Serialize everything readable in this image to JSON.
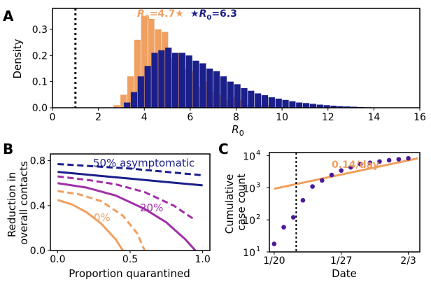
{
  "panels": {
    "A": {
      "letter": "A"
    },
    "B": {
      "letter": "B"
    },
    "C": {
      "letter": "C"
    }
  },
  "colors": {
    "orange": "#f0a060",
    "navy": "#1b1f8a",
    "purple": "#a030a8",
    "purple_dot": "#4a1a9a"
  },
  "chart_data": [
    {
      "panel": "A",
      "type": "bar",
      "xlabel_main": "R",
      "xlabel_sub": "0",
      "ylabel": "Density",
      "xlim": [
        0,
        16
      ],
      "ylim": [
        0,
        0.38
      ],
      "x_ticks": [
        "0",
        "2",
        "4",
        "6",
        "8",
        "10",
        "12",
        "14",
        "16"
      ],
      "y_ticks": [
        "0.0",
        "0.1",
        "0.2",
        "0.3"
      ],
      "bin_width": 0.28,
      "reference_line_x": 1,
      "annotations": [
        {
          "main": "R",
          "sub": "0",
          "text": "=4.7",
          "marker": "★",
          "color": "orange"
        },
        {
          "main": "R",
          "sub": "0",
          "text": "=6.3",
          "marker": "★",
          "color": "navy"
        }
      ],
      "series": [
        {
          "color": "orange",
          "x": [
            2.8,
            3.1,
            3.4,
            3.7,
            4.0,
            4.3,
            4.6,
            4.9,
            5.2,
            5.5,
            5.8,
            6.1,
            6.4,
            6.7,
            7.0,
            7.3,
            7.6,
            7.9,
            8.2,
            8.5,
            9.0,
            9.3
          ],
          "values": [
            0.01,
            0.05,
            0.12,
            0.26,
            0.35,
            0.34,
            0.3,
            0.29,
            0.19,
            0.21,
            0.15,
            0.14,
            0.08,
            0.1,
            0.06,
            0.05,
            0.03,
            0.04,
            0.03,
            0.01,
            0.01,
            0.01
          ]
        },
        {
          "color": "navy",
          "x": [
            2.95,
            3.25,
            3.55,
            3.85,
            4.15,
            4.45,
            4.75,
            5.05,
            5.35,
            5.65,
            5.95,
            6.25,
            6.55,
            6.85,
            7.15,
            7.45,
            7.75,
            8.05,
            8.35,
            8.65,
            8.95,
            9.25,
            9.55,
            9.85,
            10.15,
            10.45,
            10.75,
            11.05,
            11.35,
            11.65,
            11.95,
            12.25,
            12.55,
            12.85,
            13.15,
            13.45,
            13.75
          ],
          "values": [
            0.0,
            0.02,
            0.06,
            0.12,
            0.16,
            0.21,
            0.22,
            0.23,
            0.21,
            0.21,
            0.2,
            0.18,
            0.17,
            0.15,
            0.14,
            0.12,
            0.1,
            0.09,
            0.075,
            0.065,
            0.055,
            0.048,
            0.04,
            0.035,
            0.03,
            0.025,
            0.02,
            0.018,
            0.015,
            0.012,
            0.01,
            0.008,
            0.006,
            0.005,
            0.004,
            0.003,
            0.002
          ]
        }
      ]
    },
    {
      "panel": "B",
      "type": "line",
      "xlabel": "Proportion quarantined",
      "ylabel_lines": [
        "Reduction in",
        "overall contacts"
      ],
      "xlim": [
        -0.05,
        1.05
      ],
      "ylim": [
        0,
        0.86
      ],
      "x_ticks": [
        "0.0",
        "0.5",
        "1.0"
      ],
      "y_ticks": [
        "0.0",
        "0.4",
        "0.8"
      ],
      "labels": {
        "navy": "50% asymptomatic",
        "purple": "20%",
        "orange": "0%"
      },
      "series": [
        {
          "color": "navy",
          "dash": true,
          "x": [
            0,
            0.25,
            0.5,
            0.75,
            1.0
          ],
          "values": [
            0.77,
            0.75,
            0.73,
            0.7,
            0.67
          ]
        },
        {
          "color": "navy",
          "dash": false,
          "x": [
            0,
            0.25,
            0.5,
            0.75,
            1.0
          ],
          "values": [
            0.7,
            0.67,
            0.64,
            0.61,
            0.58
          ]
        },
        {
          "color": "purple",
          "dash": true,
          "x": [
            0,
            0.2,
            0.4,
            0.6,
            0.8,
            0.95
          ],
          "values": [
            0.66,
            0.63,
            0.59,
            0.52,
            0.4,
            0.27
          ]
        },
        {
          "color": "purple",
          "dash": false,
          "x": [
            0,
            0.2,
            0.4,
            0.6,
            0.75,
            0.88,
            0.95
          ],
          "values": [
            0.6,
            0.56,
            0.49,
            0.37,
            0.25,
            0.1,
            0.0
          ]
        },
        {
          "color": "orange",
          "dash": true,
          "x": [
            0,
            0.15,
            0.3,
            0.45,
            0.55,
            0.6
          ],
          "values": [
            0.53,
            0.5,
            0.44,
            0.31,
            0.15,
            0.0
          ]
        },
        {
          "color": "orange",
          "dash": false,
          "x": [
            0,
            0.1,
            0.2,
            0.3,
            0.4,
            0.45
          ],
          "values": [
            0.45,
            0.41,
            0.34,
            0.24,
            0.1,
            0.0
          ]
        }
      ]
    },
    {
      "panel": "C",
      "type": "scatter",
      "xlabel": "Date",
      "ylabel_lines": [
        "Cumulative",
        "case count"
      ],
      "y_scale": "log",
      "ylim_exp": [
        1,
        4.1
      ],
      "xlim_days": [
        -0.5,
        15.2
      ],
      "x_ticks": [
        {
          "day": 0,
          "label": "1/20"
        },
        {
          "day": 7,
          "label": "1/27"
        },
        {
          "day": 14,
          "label": "2/3"
        }
      ],
      "y_ticks": [
        {
          "exp": 1,
          "base": "10",
          "sup": "1"
        },
        {
          "exp": 2,
          "base": "10",
          "sup": "2"
        },
        {
          "exp": 3,
          "base": "10",
          "sup": "3"
        },
        {
          "exp": 4,
          "base": "10",
          "sup": "4"
        }
      ],
      "reference_line_day": 2.3,
      "fit_label": "0.14/day",
      "fit_line": {
        "day": [
          0,
          15
        ],
        "log10_value": [
          2.97,
          3.92
        ]
      },
      "points": {
        "day": [
          0,
          1,
          2,
          3,
          4,
          5,
          6,
          7,
          8,
          9,
          10,
          11,
          12,
          13,
          14
        ],
        "log10_value": [
          1.25,
          1.77,
          2.08,
          2.61,
          3.04,
          3.23,
          3.4,
          3.54,
          3.64,
          3.74,
          3.78,
          3.82,
          3.86,
          3.89,
          3.92
        ]
      }
    }
  ]
}
